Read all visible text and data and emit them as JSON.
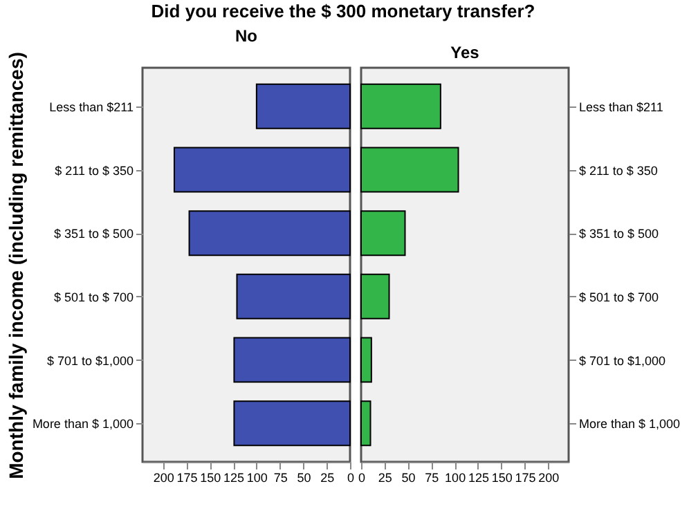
{
  "chart_data": [
    {
      "type": "bar",
      "orientation": "horizontal",
      "title": "Did you receive the $ 300 monetary transfer?",
      "subtitle": "No",
      "ylabel": "Monthly family income (including remittances)",
      "categories": [
        "Less than $211",
        "$ 211 to $ 350",
        "$ 351 to $ 500",
        "$ 501 to $ 700",
        "$ 701 to $1,000",
        "More than $ 1,000"
      ],
      "values": [
        100,
        188,
        172,
        121,
        124,
        124
      ],
      "color": "#4050b0",
      "xlim": [
        222,
        0
      ],
      "xticks": [
        200,
        175,
        150,
        125,
        100,
        75,
        50,
        25,
        0
      ],
      "grid": false
    },
    {
      "type": "bar",
      "orientation": "horizontal",
      "subtitle": "Yes",
      "categories": [
        "Less than $211",
        "$ 211 to $ 350",
        "$ 351 to $ 500",
        "$ 501 to $ 700",
        "$ 701 to $1,000",
        "More than $ 1,000"
      ],
      "values": [
        85,
        104,
        47,
        30,
        11,
        10
      ],
      "color": "#33b54a",
      "xlim": [
        0,
        222
      ],
      "xticks": [
        0,
        25,
        50,
        75,
        100,
        125,
        150,
        175,
        200
      ],
      "grid": false
    }
  ]
}
